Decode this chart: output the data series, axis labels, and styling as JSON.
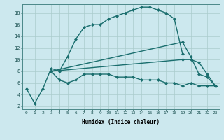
{
  "xlabel": "Humidex (Indice chaleur)",
  "xlim": [
    -0.5,
    23.5
  ],
  "ylim": [
    1.5,
    19.5
  ],
  "xticks": [
    0,
    1,
    2,
    3,
    4,
    5,
    6,
    7,
    8,
    9,
    10,
    11,
    12,
    13,
    14,
    15,
    16,
    17,
    18,
    19,
    20,
    21,
    22,
    23
  ],
  "yticks": [
    2,
    4,
    6,
    8,
    10,
    12,
    14,
    16,
    18
  ],
  "background_color": "#cce8ee",
  "grid_color": "#aacccc",
  "line_color": "#1a6e6e",
  "line_width": 1.0,
  "marker": "D",
  "marker_size": 2.0,
  "series0_x": [
    0,
    1,
    2,
    3,
    4,
    5,
    6,
    7,
    8,
    9,
    10,
    11,
    12,
    13,
    14,
    15,
    16,
    17,
    18,
    19
  ],
  "series0_y": [
    5,
    2.5,
    5,
    8.5,
    8,
    10.5,
    13.5,
    15.5,
    16,
    16,
    17,
    17.5,
    18,
    18.5,
    19,
    19,
    18.5,
    18,
    17,
    11
  ],
  "series1_x": [
    3,
    4,
    5,
    6,
    7,
    8,
    9,
    10,
    11,
    12,
    13,
    14,
    15,
    16,
    17,
    18,
    19,
    20,
    21,
    22,
    23
  ],
  "series1_y": [
    8,
    6.5,
    6.0,
    6.5,
    7.5,
    7.5,
    7.5,
    7.5,
    7.0,
    7.0,
    7.0,
    6.5,
    6.5,
    6.5,
    6.0,
    6.0,
    5.5,
    6.0,
    5.5,
    5.5,
    5.5
  ],
  "series2_x": [
    3,
    19,
    20,
    21,
    22,
    23
  ],
  "series2_y": [
    8,
    13.0,
    10.5,
    7.5,
    7.0,
    5.5
  ],
  "series3_x": [
    3,
    19,
    20,
    21,
    22,
    23
  ],
  "series3_y": [
    8,
    10.0,
    10.0,
    9.5,
    7.5,
    5.5
  ]
}
